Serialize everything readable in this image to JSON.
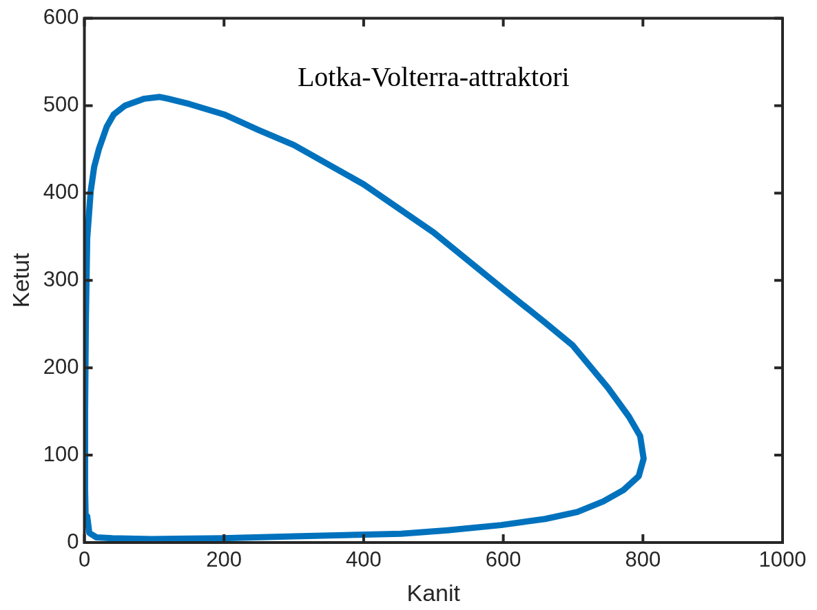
{
  "chart_data": {
    "type": "line",
    "xlabel": "Kanit",
    "ylabel": "Ketut",
    "annotations": [
      "Lotka-Volterra-attraktori"
    ],
    "xlim": [
      0,
      1000
    ],
    "xticks": [
      0,
      200,
      400,
      600,
      800,
      1000
    ],
    "ylim": [
      0,
      600
    ],
    "yticks": [
      0,
      100,
      200,
      300,
      400,
      500,
      600
    ],
    "grid": false,
    "marker": "none",
    "line_style": "solid",
    "series": [
      {
        "color": "#0072bd",
        "x": [
          4,
          7,
          17,
          40,
          96,
          198,
          300,
          402,
          454,
          520,
          597,
          660,
          706,
          743,
          772,
          794,
          801,
          796,
          780,
          750,
          699,
          658,
          600,
          500,
          400,
          300,
          250,
          200,
          150,
          120,
          108,
          86,
          58,
          42,
          32,
          21,
          14,
          9,
          4,
          2,
          1,
          1,
          2
        ],
        "values": [
          30,
          11,
          6,
          5,
          4,
          5,
          7,
          9,
          10,
          14,
          20,
          27,
          35,
          47,
          60,
          76,
          96,
          122,
          144,
          177,
          226,
          253,
          290,
          355,
          410,
          455,
          472,
          490,
          502,
          508,
          510,
          508,
          500,
          490,
          476,
          451,
          430,
          402,
          348,
          250,
          150,
          60,
          20
        ]
      }
    ]
  }
}
